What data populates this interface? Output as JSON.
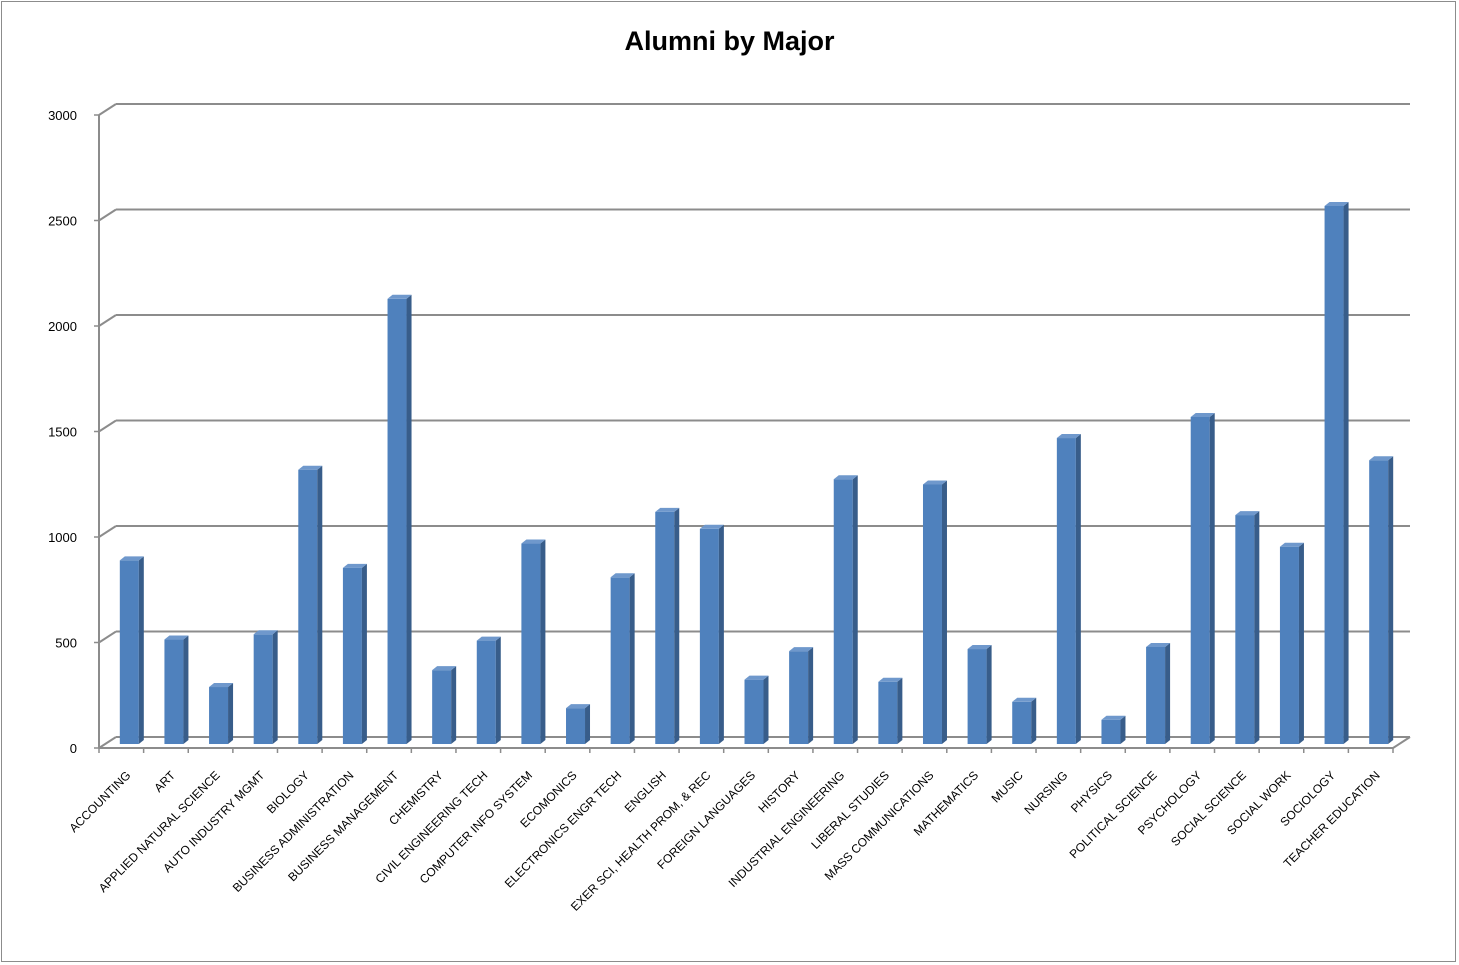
{
  "chart_data": {
    "type": "bar",
    "title": "Alumni by Major",
    "xlabel": "",
    "ylabel": "",
    "ylim": [
      0,
      3000
    ],
    "yticks": [
      0,
      500,
      1000,
      1500,
      2000,
      2500,
      3000
    ],
    "grid": true,
    "legend": "none",
    "bar_color": "#4f81bd",
    "bar_side_color": "#385d8a",
    "bar_top_color": "#6f98cc",
    "categories": [
      "ACCOUNTING",
      "ART",
      "APPLIED NATURAL SCIENCE",
      "AUTO INDUSTRY MGMT",
      "BIOLOGY",
      "BUSINESS ADMINISTRATION",
      "BUSINESS MANAGEMENT",
      "CHEMISTRY",
      "CIVIL ENGINEERING TECH",
      "COMPUTER INFO SYSTEM",
      "ECOMONICS",
      "ELECTRONICS ENGR TECH",
      "ENGLISH",
      "EXER SCI, HEALTH PROM, & REC",
      "FOREIGN LANGUAGES",
      "HISTORY",
      "INDUSTRIAL ENGINEERING",
      "LIBERAL STUDIES",
      "MASS COMMUNICATIONS",
      "MATHEMATICS",
      "MUSIC",
      "NURSING",
      "PHYSICS",
      "POLITICAL SCIENCE",
      "PSYCHOLOGY",
      "SOCIAL SCIENCE",
      "SOCIAL WORK",
      "SOCIOLOGY",
      "TEACHER EDUCATION"
    ],
    "values": [
      870,
      495,
      270,
      520,
      1300,
      835,
      2110,
      350,
      490,
      950,
      170,
      790,
      1100,
      1020,
      305,
      440,
      1255,
      295,
      1230,
      450,
      200,
      1450,
      115,
      460,
      1550,
      1085,
      935,
      2550,
      1345
    ]
  }
}
